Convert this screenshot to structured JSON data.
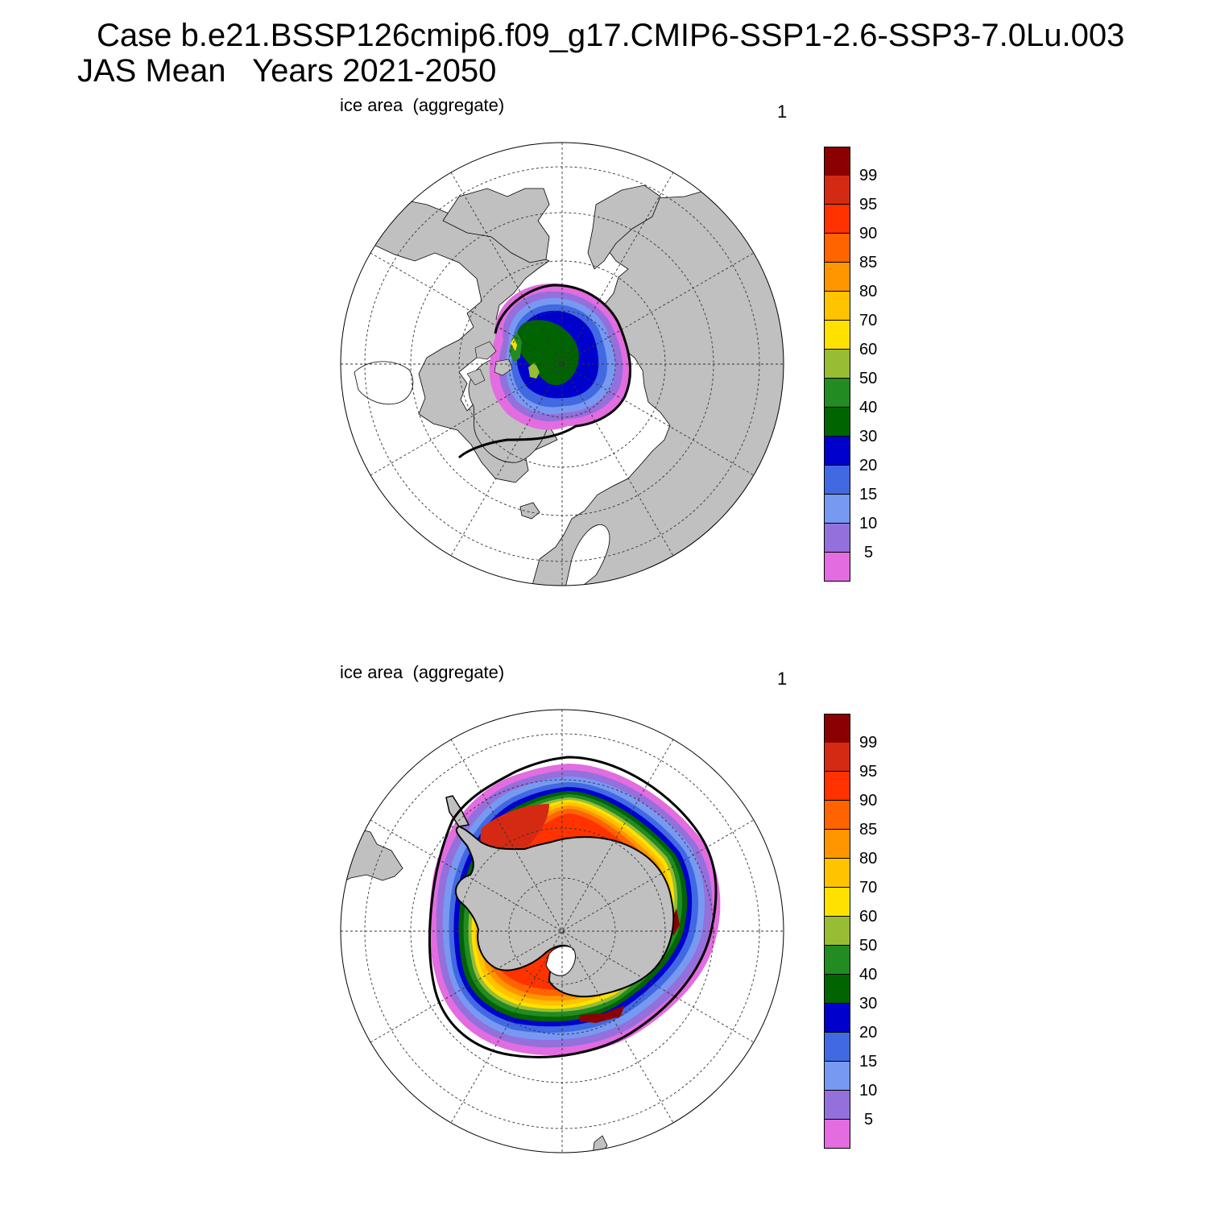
{
  "title": {
    "line1": "Case b.e21.BSSP126cmip6.f09_g17.CMIP6-SSP1-2.6-SSP3-7.0Lu.003",
    "line2": "JAS Mean   Years 2021-2050"
  },
  "panels": [
    {
      "id": "north",
      "label": "ice area  (aggregate)",
      "index": "1",
      "hemisphere": "Arctic"
    },
    {
      "id": "south",
      "label": "ice area  (aggregate)",
      "index": "1",
      "hemisphere": "Antarctic"
    }
  ],
  "colorbar": {
    "levels": [
      "99",
      "95",
      "90",
      "85",
      "80",
      "70",
      "60",
      "50",
      "40",
      "30",
      "20",
      "15",
      "10",
      "5"
    ],
    "colors": [
      "#8b0000",
      "#d42a14",
      "#ff3200",
      "#ff6400",
      "#ff9600",
      "#ffc300",
      "#ffe100",
      "#98bd35",
      "#228b22",
      "#006400",
      "#0000cd",
      "#4169e1",
      "#7799f2",
      "#9370db",
      "#e26ce0"
    ]
  },
  "colors": {
    "land": "#c0c0c0",
    "ocean": "#ffffff",
    "coast": "#000000",
    "grid": "#333333"
  }
}
